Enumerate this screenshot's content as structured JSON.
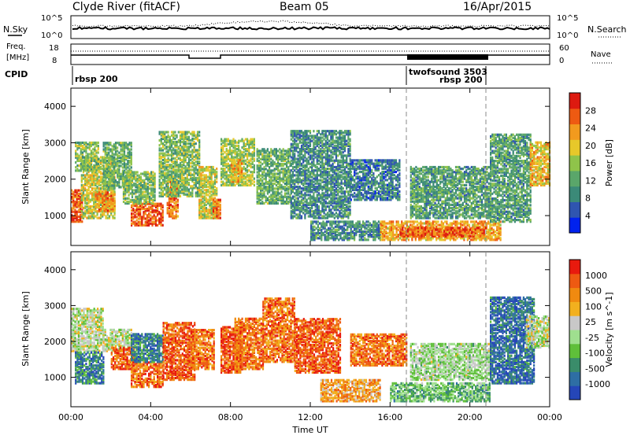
{
  "header": {
    "title": "Clyde River (fitACF)",
    "beam": "Beam 05",
    "date": "16/Apr/2015"
  },
  "top_strips": {
    "nsky_label": "N.Sky",
    "nsearch_label": "N.Search",
    "nsky_ticks": [
      "10^5",
      "10^0"
    ],
    "nsearch_ticks": [
      "10^5",
      "10^0"
    ],
    "freq_label": "Freq.",
    "freq_unit": "[MHz]",
    "freq_ticks": [
      "18",
      "8"
    ],
    "nave_label": "Nave",
    "nave_ticks": [
      "60",
      "0"
    ],
    "cpid_label": "CPID",
    "cpid_entries": [
      {
        "text": "rbsp 200",
        "start_hour": 0.0
      },
      {
        "text": "twofsound 3503",
        "start_hour": 17.0
      },
      {
        "text": "rbsp 200",
        "start_hour": 18.5
      }
    ]
  },
  "time_axis": {
    "label": "Time UT",
    "ticks": [
      "00:00",
      "04:00",
      "08:00",
      "12:00",
      "16:00",
      "20:00",
      "00:00"
    ]
  },
  "power_panel": {
    "ylabel": "Slant Range [km]",
    "yticks": [
      "4000",
      "3000",
      "2000",
      "1000"
    ],
    "colorbar_label": "Power [dB]",
    "colorbar_ticks": [
      "28",
      "24",
      "20",
      "16",
      "12",
      "8",
      "4"
    ],
    "colors": [
      "#0022ee",
      "#2f55b0",
      "#3b8a78",
      "#5aa66a",
      "#8fc34a",
      "#e7c82a",
      "#f29a1e",
      "#ee5a12",
      "#dd1a10"
    ]
  },
  "velocity_panel": {
    "ylabel": "Slant Range [km]",
    "yticks": [
      "4000",
      "3000",
      "2000",
      "1000"
    ],
    "colorbar_label": "Velocity [m s^-1]",
    "colorbar_ticks": [
      "1000",
      "500",
      "100",
      "25",
      "-25",
      "-100",
      "-500",
      "-1000"
    ],
    "colors": [
      "#2546b8",
      "#2e6ea4",
      "#3a8c6a",
      "#5fbf3a",
      "#9fdf8f",
      "#c8c8c8",
      "#f2b01e",
      "#f08a10",
      "#ee5a12",
      "#e81a0e"
    ]
  },
  "chart_data": {
    "type": "heatmap",
    "x": {
      "label": "Time UT",
      "range": [
        0,
        24
      ],
      "unit": "hours"
    },
    "y": {
      "label": "Slant Range [km]",
      "range": [
        180,
        4500
      ]
    },
    "panels": [
      {
        "name": "Power [dB]",
        "color_range": [
          0,
          30
        ],
        "regions": [
          {
            "t0": 0.0,
            "t1": 0.6,
            "r0": 800,
            "r1": 1700,
            "level": 0.85
          },
          {
            "t0": 0.5,
            "t1": 2.2,
            "r0": 900,
            "r1": 2600,
            "level": 0.55
          },
          {
            "t0": 1.2,
            "t1": 2.2,
            "r0": 1100,
            "r1": 1600,
            "level": 0.75
          },
          {
            "t0": 0.2,
            "t1": 1.4,
            "r0": 2200,
            "r1": 3000,
            "level": 0.45
          },
          {
            "t0": 1.6,
            "t1": 3.0,
            "r0": 1700,
            "r1": 3000,
            "level": 0.4
          },
          {
            "t0": 3.0,
            "t1": 4.6,
            "r0": 700,
            "r1": 1300,
            "level": 0.85
          },
          {
            "t0": 2.6,
            "t1": 4.2,
            "r0": 1300,
            "r1": 2200,
            "level": 0.45
          },
          {
            "t0": 4.8,
            "t1": 5.4,
            "r0": 900,
            "r1": 1900,
            "level": 0.8
          },
          {
            "t0": 4.4,
            "t1": 6.4,
            "r0": 1500,
            "r1": 3300,
            "level": 0.45
          },
          {
            "t0": 6.4,
            "t1": 7.3,
            "r0": 900,
            "r1": 2300,
            "level": 0.55
          },
          {
            "t0": 7.1,
            "t1": 7.5,
            "r0": 900,
            "r1": 1400,
            "level": 0.8
          },
          {
            "t0": 7.5,
            "t1": 9.2,
            "r0": 1800,
            "r1": 3100,
            "level": 0.5
          },
          {
            "t0": 8.0,
            "t1": 8.6,
            "r0": 1900,
            "r1": 2500,
            "level": 0.7
          },
          {
            "t0": 9.3,
            "t1": 11.0,
            "r0": 1300,
            "r1": 2800,
            "level": 0.4
          },
          {
            "t0": 11.0,
            "t1": 14.0,
            "r0": 900,
            "r1": 3300,
            "level": 0.3
          },
          {
            "t0": 12.0,
            "t1": 15.5,
            "r0": 300,
            "r1": 800,
            "level": 0.3
          },
          {
            "t0": 14.0,
            "t1": 16.5,
            "r0": 1400,
            "r1": 2500,
            "level": 0.25
          },
          {
            "t0": 15.5,
            "t1": 21.5,
            "r0": 300,
            "r1": 800,
            "level": 0.7
          },
          {
            "t0": 16.5,
            "t1": 20.8,
            "r0": 400,
            "r1": 650,
            "level": 0.85
          },
          {
            "t0": 17.0,
            "t1": 21.0,
            "r0": 900,
            "r1": 2300,
            "level": 0.35
          },
          {
            "t0": 21.0,
            "t1": 23.0,
            "r0": 800,
            "r1": 3200,
            "level": 0.35
          },
          {
            "t0": 23.0,
            "t1": 24.0,
            "r0": 1800,
            "r1": 3000,
            "level": 0.65
          }
        ]
      },
      {
        "name": "Velocity [m s^-1]",
        "color_range": [
          -1000,
          1000
        ],
        "regions": [
          {
            "t0": 0.0,
            "t1": 1.6,
            "r0": 1700,
            "r1": 2900,
            "level": 0.5
          },
          {
            "t0": 0.2,
            "t1": 1.6,
            "r0": 800,
            "r1": 1700,
            "level": 0.2
          },
          {
            "t0": 1.6,
            "t1": 3.0,
            "r0": 1700,
            "r1": 2300,
            "level": 0.5
          },
          {
            "t0": 2.0,
            "t1": 3.2,
            "r0": 1200,
            "r1": 1800,
            "level": 0.85
          },
          {
            "t0": 3.0,
            "t1": 4.6,
            "r0": 700,
            "r1": 1400,
            "level": 0.8
          },
          {
            "t0": 3.0,
            "t1": 4.6,
            "r0": 1400,
            "r1": 2200,
            "level": 0.2
          },
          {
            "t0": 4.6,
            "t1": 6.2,
            "r0": 900,
            "r1": 2500,
            "level": 0.85
          },
          {
            "t0": 6.0,
            "t1": 7.2,
            "r0": 1200,
            "r1": 2300,
            "level": 0.8
          },
          {
            "t0": 7.5,
            "t1": 8.6,
            "r0": 1100,
            "r1": 2400,
            "level": 0.85
          },
          {
            "t0": 8.2,
            "t1": 9.6,
            "r0": 1200,
            "r1": 2600,
            "level": 0.8
          },
          {
            "t0": 9.6,
            "t1": 11.2,
            "r0": 1400,
            "r1": 3200,
            "level": 0.8
          },
          {
            "t0": 11.2,
            "t1": 13.5,
            "r0": 1100,
            "r1": 2600,
            "level": 0.85
          },
          {
            "t0": 12.5,
            "t1": 15.5,
            "r0": 300,
            "r1": 900,
            "level": 0.7
          },
          {
            "t0": 14.0,
            "t1": 16.8,
            "r0": 1300,
            "r1": 2200,
            "level": 0.8
          },
          {
            "t0": 16.0,
            "t1": 21.0,
            "r0": 300,
            "r1": 800,
            "level": 0.35
          },
          {
            "t0": 17.0,
            "t1": 21.0,
            "r0": 900,
            "r1": 1900,
            "level": 0.45
          },
          {
            "t0": 21.0,
            "t1": 23.2,
            "r0": 800,
            "r1": 3200,
            "level": 0.15
          },
          {
            "t0": 22.8,
            "t1": 24.0,
            "r0": 1800,
            "r1": 2700,
            "level": 0.5
          }
        ]
      }
    ]
  }
}
